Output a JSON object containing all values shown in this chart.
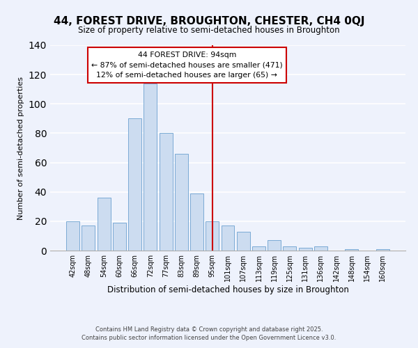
{
  "title": "44, FOREST DRIVE, BROUGHTON, CHESTER, CH4 0QJ",
  "subtitle": "Size of property relative to semi-detached houses in Broughton",
  "xlabel": "Distribution of semi-detached houses by size in Broughton",
  "ylabel": "Number of semi-detached properties",
  "bar_labels": [
    "42sqm",
    "48sqm",
    "54sqm",
    "60sqm",
    "66sqm",
    "72sqm",
    "77sqm",
    "83sqm",
    "89sqm",
    "95sqm",
    "101sqm",
    "107sqm",
    "113sqm",
    "119sqm",
    "125sqm",
    "131sqm",
    "136sqm",
    "142sqm",
    "148sqm",
    "154sqm",
    "160sqm"
  ],
  "bar_values": [
    20,
    17,
    36,
    19,
    90,
    114,
    80,
    66,
    39,
    20,
    17,
    13,
    3,
    7,
    3,
    2,
    3,
    0,
    1,
    0,
    1
  ],
  "bar_color": "#ccdcf0",
  "bar_edge_color": "#7aaad4",
  "property_line_x": "95sqm",
  "annotation_title": "44 FOREST DRIVE: 94sqm",
  "annotation_line1": "← 87% of semi-detached houses are smaller (471)",
  "annotation_line2": "12% of semi-detached houses are larger (65) →",
  "annotation_box_color": "#ffffff",
  "annotation_border_color": "#cc0000",
  "ylim": [
    0,
    140
  ],
  "yticks": [
    0,
    20,
    40,
    60,
    80,
    100,
    120,
    140
  ],
  "footer1": "Contains HM Land Registry data © Crown copyright and database right 2025.",
  "footer2": "Contains public sector information licensed under the Open Government Licence v3.0.",
  "bg_color": "#eef2fc",
  "grid_color": "#ffffff",
  "vline_color": "#cc0000"
}
